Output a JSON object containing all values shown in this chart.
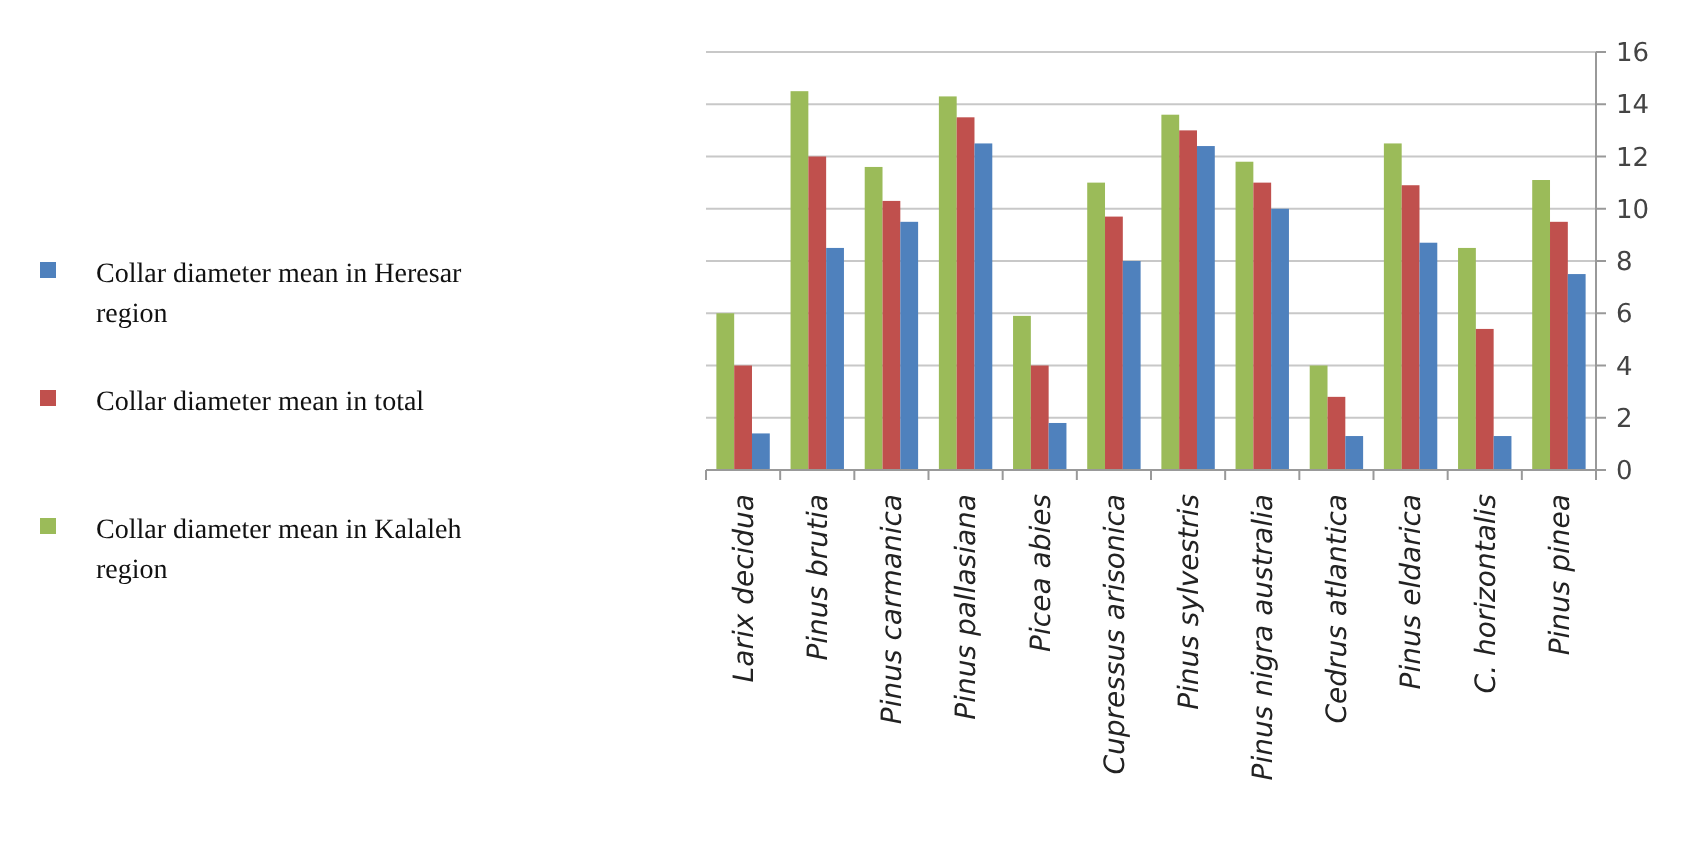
{
  "chart_data": {
    "type": "bar",
    "categories": [
      "Larix decidua",
      "Pinus brutia",
      "Pinus carmanica",
      "Pinus pallasiana",
      "Picea abies",
      "Cupressus arisonica",
      "Pinus sylvestris",
      "Pinus nigra australia",
      "Cedrus atlantica",
      "Pinus eldarica",
      "C. horizontalis",
      "Pinus pinea"
    ],
    "series": [
      {
        "name": "Collar diameter mean in Kalaleh region",
        "color": "#9bbb59",
        "values": [
          6.0,
          14.5,
          11.6,
          14.3,
          5.9,
          11.0,
          13.6,
          11.8,
          4.0,
          12.5,
          8.5,
          11.1
        ]
      },
      {
        "name": "Collar diameter mean in total",
        "color": "#c0504d",
        "values": [
          4.0,
          12.0,
          10.3,
          13.5,
          4.0,
          9.7,
          13.0,
          11.0,
          2.8,
          10.9,
          5.4,
          9.5
        ]
      },
      {
        "name": "Collar diameter mean in Heresar region",
        "color": "#4f81bd",
        "values": [
          1.4,
          8.5,
          9.5,
          12.5,
          1.8,
          8.0,
          12.4,
          10.0,
          1.3,
          8.7,
          1.3,
          7.5
        ]
      }
    ],
    "ylim": [
      0,
      16
    ],
    "yticks": [
      0,
      2,
      4,
      6,
      8,
      10,
      12,
      14,
      16
    ],
    "grid": "y",
    "legend": "left"
  }
}
